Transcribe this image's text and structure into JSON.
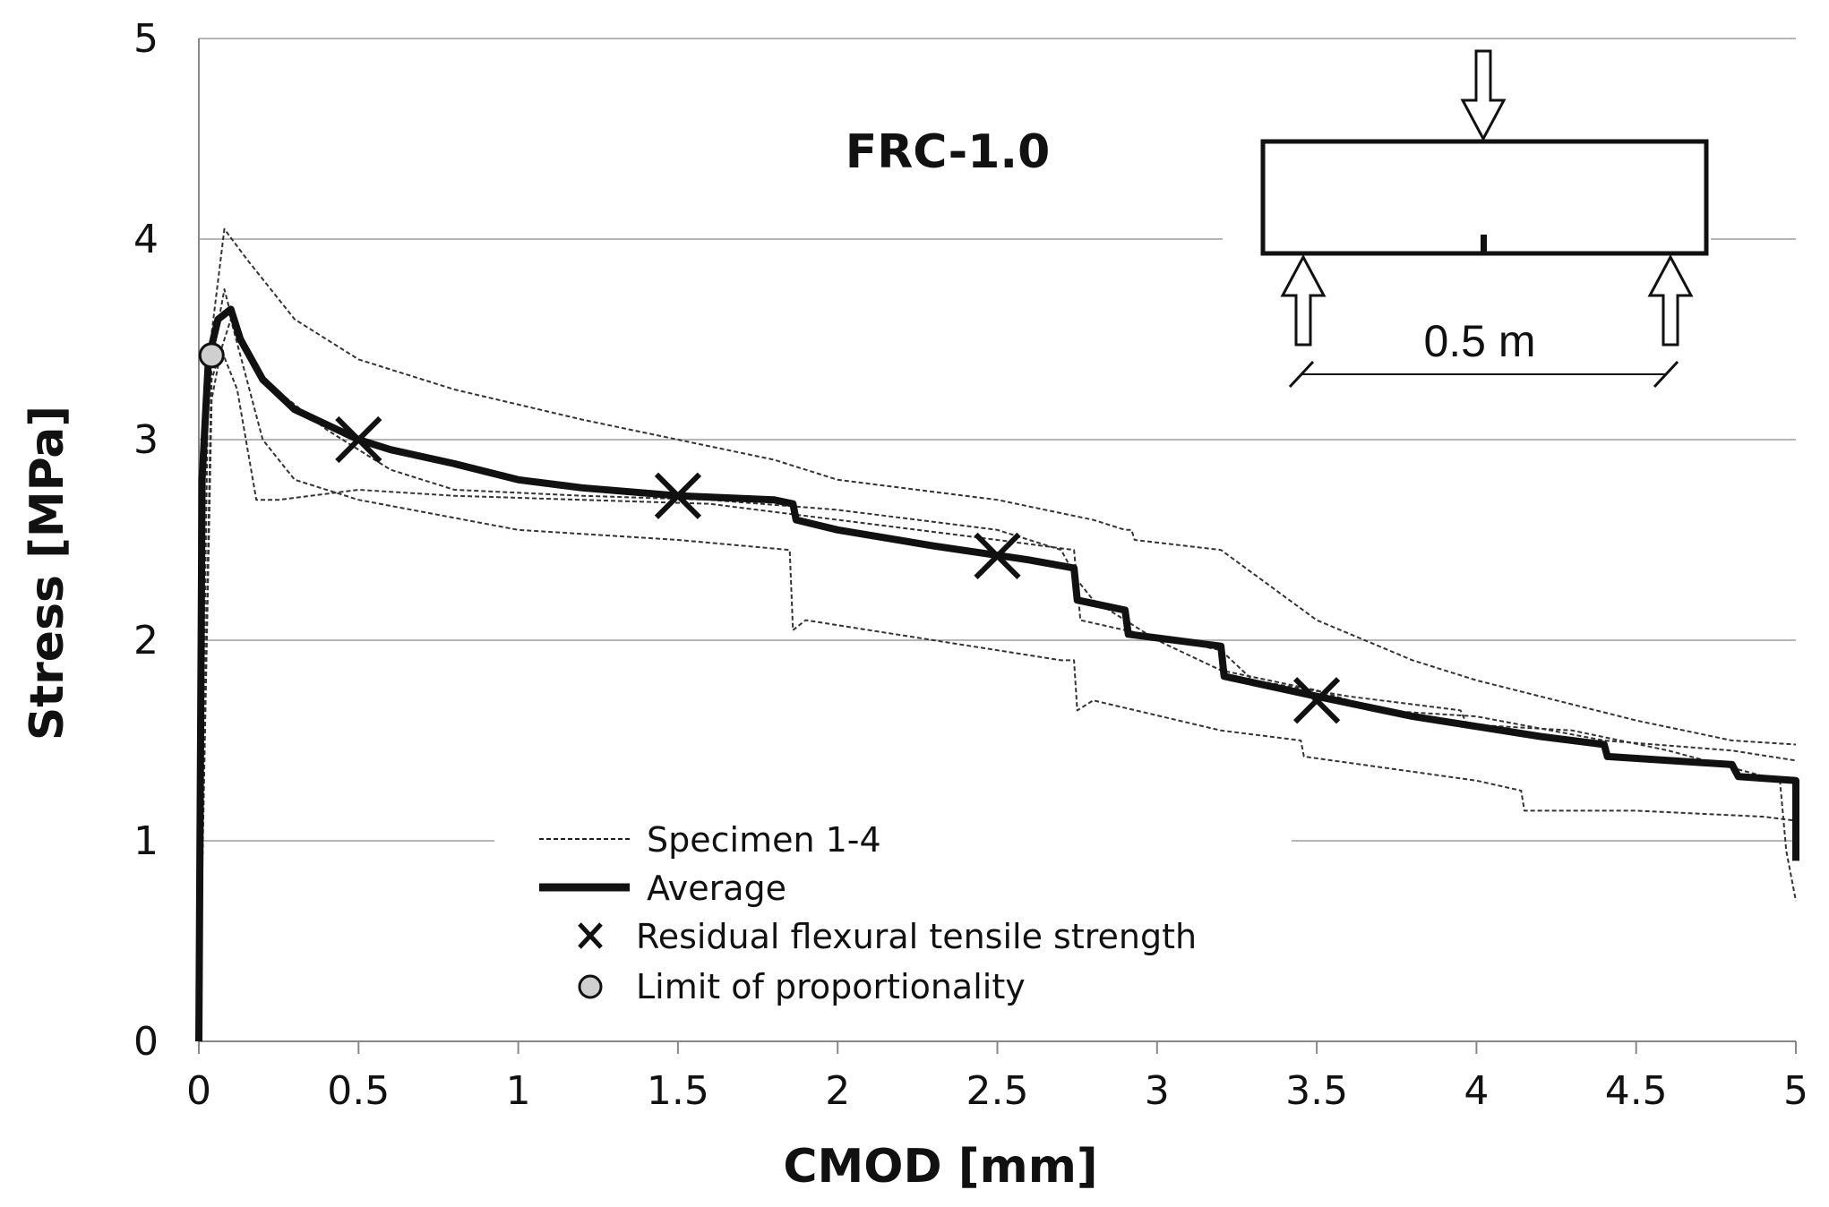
{
  "chart_data": {
    "type": "line",
    "title": "FRC-1.0",
    "xlabel": "CMOD [mm]",
    "ylabel": "Stress [MPa]",
    "xlim": [
      0,
      5
    ],
    "ylim": [
      0,
      5
    ],
    "xticks": [
      0,
      0.5,
      1,
      1.5,
      2,
      2.5,
      3,
      3.5,
      4,
      4.5,
      5
    ],
    "xtick_labels": [
      "0",
      "0.5",
      "1",
      "1.5",
      "2",
      "2.5",
      "3",
      "3.5",
      "4",
      "4.5",
      "5"
    ],
    "yticks": [
      0,
      1,
      2,
      3,
      4,
      5
    ],
    "ytick_labels": [
      "0",
      "1",
      "2",
      "3",
      "4",
      "5"
    ],
    "grid": "horizontal",
    "series": [
      {
        "name": "Specimen 1",
        "style": "dashed-thin",
        "points": [
          [
            0,
            0
          ],
          [
            0.03,
            3.4
          ],
          [
            0.08,
            4.05
          ],
          [
            0.15,
            3.9
          ],
          [
            0.3,
            3.6
          ],
          [
            0.5,
            3.4
          ],
          [
            0.8,
            3.25
          ],
          [
            1.2,
            3.1
          ],
          [
            1.5,
            3.0
          ],
          [
            1.8,
            2.9
          ],
          [
            2.0,
            2.8
          ],
          [
            2.5,
            2.7
          ],
          [
            2.8,
            2.6
          ],
          [
            2.9,
            2.55
          ],
          [
            2.92,
            2.55
          ],
          [
            2.93,
            2.5
          ],
          [
            3.2,
            2.45
          ],
          [
            3.5,
            2.1
          ],
          [
            3.8,
            1.9
          ],
          [
            4.0,
            1.8
          ],
          [
            4.5,
            1.6
          ],
          [
            4.8,
            1.5
          ],
          [
            5.0,
            1.48
          ]
        ]
      },
      {
        "name": "Specimen 2",
        "style": "dashed-thin",
        "points": [
          [
            0,
            0
          ],
          [
            0.04,
            3.3
          ],
          [
            0.1,
            3.6
          ],
          [
            0.15,
            3.3
          ],
          [
            0.2,
            3.0
          ],
          [
            0.3,
            2.8
          ],
          [
            0.5,
            2.7
          ],
          [
            1.0,
            2.55
          ],
          [
            1.5,
            2.5
          ],
          [
            1.85,
            2.45
          ],
          [
            1.86,
            2.05
          ],
          [
            1.9,
            2.1
          ],
          [
            2.3,
            2.0
          ],
          [
            2.7,
            1.9
          ],
          [
            2.74,
            1.9
          ],
          [
            2.75,
            1.65
          ],
          [
            2.8,
            1.7
          ],
          [
            3.2,
            1.55
          ],
          [
            3.45,
            1.5
          ],
          [
            3.46,
            1.42
          ],
          [
            4.0,
            1.3
          ],
          [
            4.14,
            1.25
          ],
          [
            4.15,
            1.15
          ],
          [
            4.5,
            1.15
          ],
          [
            4.9,
            1.12
          ],
          [
            5.0,
            1.1
          ]
        ]
      },
      {
        "name": "Specimen 3",
        "style": "dashed-thin",
        "points": [
          [
            0,
            0
          ],
          [
            0.04,
            3.4
          ],
          [
            0.08,
            3.75
          ],
          [
            0.12,
            3.5
          ],
          [
            0.2,
            3.3
          ],
          [
            0.4,
            3.05
          ],
          [
            0.6,
            2.85
          ],
          [
            0.8,
            2.75
          ],
          [
            1.2,
            2.72
          ],
          [
            1.6,
            2.7
          ],
          [
            2.0,
            2.65
          ],
          [
            2.5,
            2.55
          ],
          [
            2.7,
            2.45
          ],
          [
            2.75,
            2.3
          ],
          [
            2.8,
            2.2
          ],
          [
            3.0,
            2.0
          ],
          [
            3.2,
            1.85
          ],
          [
            3.5,
            1.75
          ],
          [
            3.7,
            1.65
          ],
          [
            4.0,
            1.62
          ],
          [
            4.4,
            1.5
          ],
          [
            4.8,
            1.45
          ],
          [
            5.0,
            1.4
          ]
        ]
      },
      {
        "name": "Specimen 4",
        "style": "dashed-thin",
        "points": [
          [
            0,
            0
          ],
          [
            0.04,
            3.2
          ],
          [
            0.07,
            3.45
          ],
          [
            0.12,
            3.25
          ],
          [
            0.18,
            2.7
          ],
          [
            0.25,
            2.7
          ],
          [
            0.5,
            2.75
          ],
          [
            0.8,
            2.72
          ],
          [
            1.2,
            2.7
          ],
          [
            1.6,
            2.68
          ],
          [
            2.0,
            2.6
          ],
          [
            2.5,
            2.5
          ],
          [
            2.74,
            2.45
          ],
          [
            2.76,
            2.1
          ],
          [
            2.9,
            2.05
          ],
          [
            3.2,
            1.95
          ],
          [
            3.3,
            1.8
          ],
          [
            3.6,
            1.72
          ],
          [
            3.95,
            1.65
          ],
          [
            3.97,
            1.58
          ],
          [
            4.3,
            1.55
          ],
          [
            4.6,
            1.45
          ],
          [
            4.95,
            1.3
          ],
          [
            4.97,
            0.95
          ],
          [
            5.0,
            0.7
          ]
        ]
      },
      {
        "name": "Average",
        "style": "solid-thick",
        "points": [
          [
            0,
            0
          ],
          [
            0.01,
            2.8
          ],
          [
            0.03,
            3.4
          ],
          [
            0.06,
            3.6
          ],
          [
            0.1,
            3.65
          ],
          [
            0.13,
            3.5
          ],
          [
            0.2,
            3.3
          ],
          [
            0.3,
            3.15
          ],
          [
            0.5,
            3.0
          ],
          [
            0.6,
            2.95
          ],
          [
            0.8,
            2.88
          ],
          [
            1.0,
            2.8
          ],
          [
            1.2,
            2.76
          ],
          [
            1.5,
            2.72
          ],
          [
            1.8,
            2.7
          ],
          [
            1.86,
            2.68
          ],
          [
            1.87,
            2.6
          ],
          [
            2.0,
            2.55
          ],
          [
            2.3,
            2.47
          ],
          [
            2.6,
            2.4
          ],
          [
            2.74,
            2.36
          ],
          [
            2.75,
            2.2
          ],
          [
            2.9,
            2.15
          ],
          [
            2.91,
            2.03
          ],
          [
            3.2,
            1.97
          ],
          [
            3.21,
            1.82
          ],
          [
            3.5,
            1.72
          ],
          [
            3.8,
            1.62
          ],
          [
            4.0,
            1.57
          ],
          [
            4.2,
            1.52
          ],
          [
            4.4,
            1.48
          ],
          [
            4.41,
            1.42
          ],
          [
            4.8,
            1.38
          ],
          [
            4.82,
            1.32
          ],
          [
            5.0,
            1.3
          ],
          [
            5.0,
            0.9
          ]
        ]
      }
    ],
    "markers": {
      "residual": {
        "name": "Residual flexural tensile strength",
        "points": [
          [
            0.5,
            3.0
          ],
          [
            1.5,
            2.72
          ],
          [
            2.5,
            2.42
          ],
          [
            3.5,
            1.7
          ]
        ]
      },
      "lop": {
        "name": "Limit of proportionality",
        "points": [
          [
            0.04,
            3.42
          ]
        ]
      }
    },
    "legend": {
      "position": "bottom-center",
      "items": [
        "Specimen 1-4",
        "Average",
        "Residual flexural tensile strength",
        "Limit of proportionality"
      ]
    },
    "inset": {
      "label": "0.5 m"
    }
  }
}
